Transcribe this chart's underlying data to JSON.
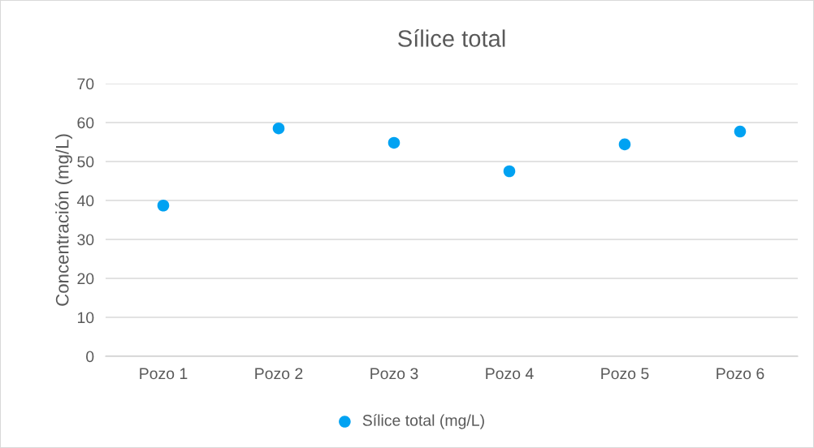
{
  "chart_data": {
    "type": "scatter",
    "title": "Sílice total",
    "ylabel": "Concentración (mg/L)",
    "categories": [
      "Pozo 1",
      "Pozo 2",
      "Pozo 3",
      "Pozo 4",
      "Pozo 5",
      "Pozo 6"
    ],
    "series": [
      {
        "name": "Sílice total (mg/L)",
        "color": "#00a2f2",
        "values": [
          38.7,
          58.5,
          54.8,
          47.5,
          54.4,
          57.7
        ]
      }
    ],
    "ylim": [
      0,
      70
    ],
    "yticks": [
      0,
      10,
      20,
      30,
      40,
      50,
      60,
      70
    ],
    "grid": "y",
    "legend": "bottom",
    "marker": "circle"
  }
}
